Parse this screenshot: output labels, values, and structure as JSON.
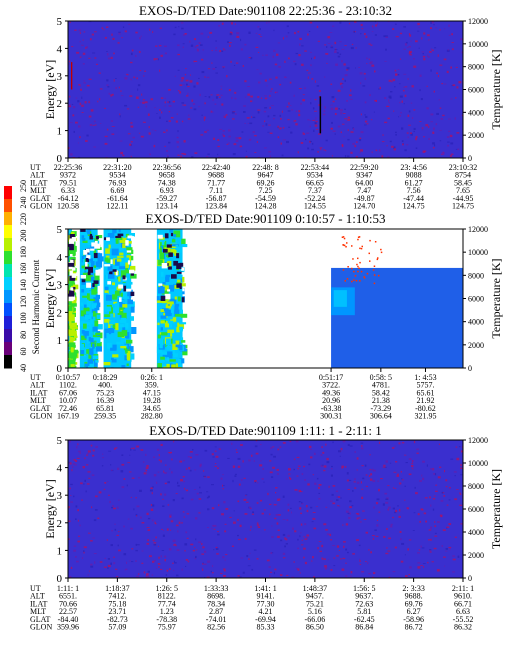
{
  "figure": {
    "colorbar": {
      "label": "Second Harmonic Current",
      "ticks": [
        "40",
        "60",
        "80",
        "100",
        "120",
        "140",
        "160",
        "180",
        "200",
        "220",
        "240",
        "250"
      ],
      "colors": [
        "#000000",
        "#6a0079",
        "#3a0ca8",
        "#1f1fd8",
        "#0050ff",
        "#0096ff",
        "#00d0ff",
        "#00e5b0",
        "#2ee02e",
        "#b8f000",
        "#ffff00",
        "#ffb000",
        "#ff5000",
        "#ff0000"
      ]
    },
    "row_labels": [
      "UT",
      "ALT",
      "ILAT",
      "MLT",
      "GLAT",
      "GLON"
    ]
  },
  "chart_data": [
    {
      "type": "heatmap",
      "title": "EXOS-D/TED   Date:901108   22:25:36 - 23:10:32",
      "ylabel": "Energy [eV]",
      "y2label": "Temperature [K]",
      "ylim": [
        0,
        5
      ],
      "y2lim": [
        0,
        12000
      ],
      "yticks": [
        "0",
        "1",
        "2",
        "3",
        "4",
        "5"
      ],
      "y2ticks": [
        "0",
        "2000",
        "4000",
        "6000",
        "8000",
        "10000",
        "12000"
      ],
      "background": "#3a2fcf",
      "columns": [
        {
          "UT": "22:25:36",
          "ALT": "9372",
          "ILAT": "79.51",
          "MLT": "6.33",
          "GLAT": "-64.12",
          "GLON": "120.58"
        },
        {
          "UT": "22:31:20",
          "ALT": "9534",
          "ILAT": "76.93",
          "MLT": "6.69",
          "GLAT": "-61.64",
          "GLON": "122.11"
        },
        {
          "UT": "22:36:56",
          "ALT": "9658",
          "ILAT": "74.38",
          "MLT": "6.93",
          "GLAT": "-59.27",
          "GLON": "123.14"
        },
        {
          "UT": "22:42:40",
          "ALT": "9688",
          "ILAT": "71.77",
          "MLT": "7.11",
          "GLAT": "-56.87",
          "GLON": "123.84"
        },
        {
          "UT": "22:48: 8",
          "ALT": "9647",
          "ILAT": "69.26",
          "MLT": "7.25",
          "GLAT": "-54.59",
          "GLON": "124.28"
        },
        {
          "UT": "22:53:44",
          "ALT": "9534",
          "ILAT": "66.65",
          "MLT": "7.37",
          "GLAT": "-52.24",
          "GLON": "124.55"
        },
        {
          "UT": "22:59:20",
          "ALT": "9347",
          "ILAT": "64.00",
          "MLT": "7.47",
          "GLAT": "-49.87",
          "GLON": "124.70"
        },
        {
          "UT": "23: 4:56",
          "ALT": "9088",
          "ILAT": "61.27",
          "MLT": "7.56",
          "GLAT": "-47.44",
          "GLON": "124.75"
        },
        {
          "UT": "23:10:32",
          "ALT": "8754",
          "ILAT": "58.45",
          "MLT": "7.65",
          "GLAT": "-44.95",
          "GLON": "124.75"
        }
      ]
    },
    {
      "type": "heatmap",
      "title": "EXOS-D/TED   Date:901109   0:10:57 - 1:10:53",
      "ylabel": "Energy [eV]",
      "y2label": "Temperature [K]",
      "ylim": [
        0,
        5
      ],
      "y2lim": [
        0,
        12000
      ],
      "yticks": [
        "0",
        "1",
        "2",
        "3",
        "4",
        "5"
      ],
      "y2ticks": [
        "0",
        "2000",
        "4000",
        "6000",
        "8000",
        "10000",
        "12000"
      ],
      "background": "#ffffff",
      "columns": [
        {
          "UT": "0:10:57",
          "ALT": "1102.",
          "ILAT": "67.06",
          "MLT": "10.07",
          "GLAT": "72.46",
          "GLON": "167.19"
        },
        {
          "UT": "0:18:29",
          "ALT": "400.",
          "ILAT": "75.23",
          "MLT": "16.39",
          "GLAT": "65.81",
          "GLON": "259.35"
        },
        {
          "UT": "0:26: 1",
          "ALT": "359.",
          "ILAT": "47.15",
          "MLT": "19.28",
          "GLAT": "34.65",
          "GLON": "282.80"
        },
        {
          "UT": "0:51:17",
          "ALT": "3722.",
          "ILAT": "49.36",
          "MLT": "20.96",
          "GLAT": "-63.38",
          "GLON": "300.31"
        },
        {
          "UT": "0:58: 5",
          "ALT": "4781.",
          "ILAT": "58.42",
          "MLT": "21.38",
          "GLAT": "-73.29",
          "GLON": "306.64"
        },
        {
          "UT": "1: 4:53",
          "ALT": "5757.",
          "ILAT": "65.61",
          "MLT": "21.92",
          "GLAT": "-80.62",
          "GLON": "321.95"
        }
      ]
    },
    {
      "type": "heatmap",
      "title": "EXOS-D/TED   Date:901109   1:11: 1 - 2:11: 1",
      "ylabel": "Energy [eV]",
      "y2label": "Temperature [K]",
      "ylim": [
        0,
        5
      ],
      "y2lim": [
        0,
        12000
      ],
      "yticks": [
        "0",
        "1",
        "2",
        "3",
        "4",
        "5"
      ],
      "y2ticks": [
        "0",
        "2000",
        "4000",
        "6000",
        "8000",
        "10000",
        "12000"
      ],
      "background": "#3a2fcf",
      "columns": [
        {
          "UT": "1:11: 1",
          "ALT": "6551.",
          "ILAT": "70.66",
          "MLT": "22.57",
          "GLAT": "-84.40",
          "GLON": "359.96"
        },
        {
          "UT": "1:18:37",
          "ALT": "7412.",
          "ILAT": "75.18",
          "MLT": "23.71",
          "GLAT": "-82.73",
          "GLON": "57.09"
        },
        {
          "UT": "1:26: 5",
          "ALT": "8122.",
          "ILAT": "77.74",
          "MLT": "1.23",
          "GLAT": "-78.38",
          "GLON": "75.97"
        },
        {
          "UT": "1:33:33",
          "ALT": "8698.",
          "ILAT": "78.34",
          "MLT": "2.87",
          "GLAT": "-74.01",
          "GLON": "82.56"
        },
        {
          "UT": "1:41: 1",
          "ALT": "9141.",
          "ILAT": "77.30",
          "MLT": "4.21",
          "GLAT": "-69.94",
          "GLON": "85.33"
        },
        {
          "UT": "1:48:37",
          "ALT": "9457.",
          "ILAT": "75.21",
          "MLT": "5.16",
          "GLAT": "-66.06",
          "GLON": "86.50"
        },
        {
          "UT": "1:56: 5",
          "ALT": "9637.",
          "ILAT": "72.63",
          "MLT": "5.81",
          "GLAT": "-62.45",
          "GLON": "86.84"
        },
        {
          "UT": "2: 3:33",
          "ALT": "9688.",
          "ILAT": "69.76",
          "MLT": "6.27",
          "GLAT": "-58.96",
          "GLON": "86.72"
        },
        {
          "UT": "2:11: 1",
          "ALT": "9610.",
          "ILAT": "66.71",
          "MLT": "6.63",
          "GLAT": "-55.52",
          "GLON": "86.32"
        }
      ]
    }
  ]
}
